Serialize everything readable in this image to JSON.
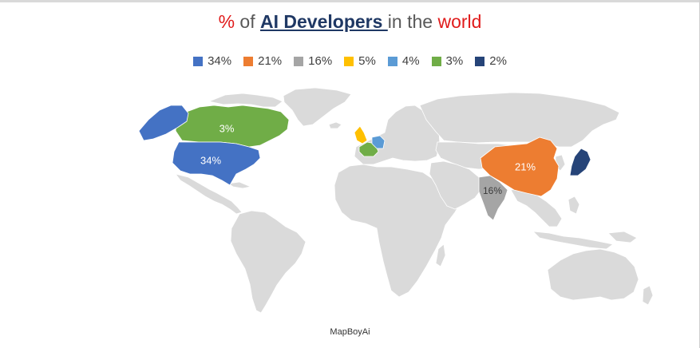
{
  "title": {
    "part1": "% ",
    "part2": "of ",
    "part3": "AI Developers ",
    "part4": "in the ",
    "part5": "world"
  },
  "colors": {
    "land": "#dadada",
    "border": "#ffffff",
    "blue": "#4472c4",
    "orange": "#ed7d31",
    "gray": "#a5a5a5",
    "yellow": "#ffc000",
    "lightblue": "#5b9bd5",
    "green": "#70ad47",
    "navy": "#264478"
  },
  "legend": [
    {
      "label": "34%",
      "color": "#4472c4"
    },
    {
      "label": "21%",
      "color": "#ed7d31"
    },
    {
      "label": "16%",
      "color": "#a5a5a5"
    },
    {
      "label": "5%",
      "color": "#ffc000"
    },
    {
      "label": "4%",
      "color": "#5b9bd5"
    },
    {
      "label": "3%",
      "color": "#70ad47"
    },
    {
      "label": "2%",
      "color": "#264478"
    }
  ],
  "regions": {
    "usa": {
      "name": "United States",
      "value": "34%"
    },
    "china": {
      "name": "China",
      "value": "21%"
    },
    "india": {
      "name": "India",
      "value": "16%"
    },
    "uk": {
      "name": "United Kingdom",
      "value": "5%"
    },
    "germany": {
      "name": "Germany",
      "value": "4%"
    },
    "canada": {
      "name": "Canada",
      "value": "3%"
    },
    "france": {
      "name": "France",
      "value": "3%"
    },
    "japan": {
      "name": "Japan",
      "value": "2%"
    }
  },
  "credit": "MapBoyAi"
}
